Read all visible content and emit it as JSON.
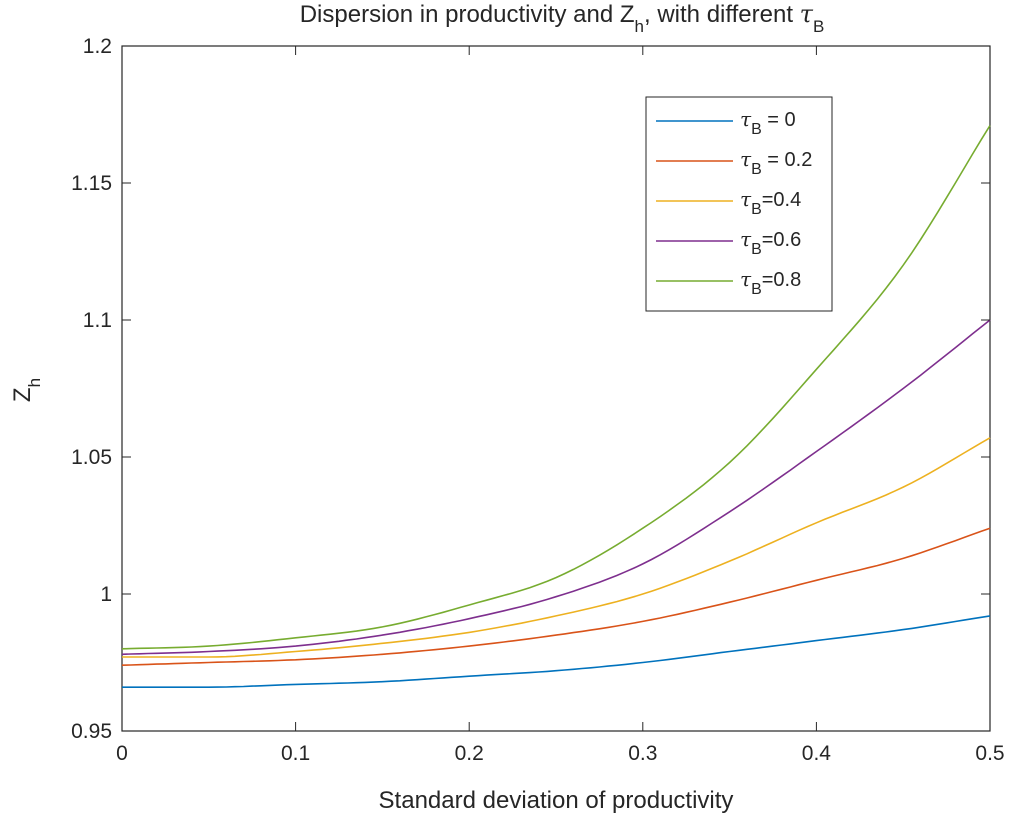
{
  "chart_data": {
    "type": "line",
    "title": {
      "main": "Dispersion in productivity and Z",
      "sub_h": "h",
      "mid": ", with different ",
      "tau": "τ",
      "sub_B": "B"
    },
    "xlabel": "Standard deviation of productivity",
    "ylabel": {
      "main": "Z",
      "sub": "h"
    },
    "xlim": [
      0,
      0.5
    ],
    "ylim": [
      0.95,
      1.2
    ],
    "xticks": [
      "0",
      "0.1",
      "0.2",
      "0.3",
      "0.4",
      "0.5"
    ],
    "yticks": [
      "0.95",
      "1",
      "1.05",
      "1.1",
      "1.15",
      "1.2"
    ],
    "grid": false,
    "legend_position": "top-right",
    "x": [
      0,
      0.05,
      0.1,
      0.15,
      0.2,
      0.25,
      0.3,
      0.35,
      0.4,
      0.45,
      0.5
    ],
    "series": [
      {
        "tau": "τ",
        "sub": "B",
        "label_tail": " = 0",
        "color": "#0072BD",
        "values": [
          0.966,
          0.966,
          0.967,
          0.968,
          0.97,
          0.972,
          0.975,
          0.979,
          0.983,
          0.987,
          0.992
        ]
      },
      {
        "tau": "τ",
        "sub": "B",
        "label_tail": " = 0.2",
        "color": "#D95319",
        "values": [
          0.974,
          0.975,
          0.976,
          0.978,
          0.981,
          0.985,
          0.99,
          0.997,
          1.005,
          1.013,
          1.024
        ]
      },
      {
        "tau": "τ",
        "sub": "B",
        "label_tail": "=0.4",
        "color": "#EDB120",
        "values": [
          0.977,
          0.977,
          0.979,
          0.982,
          0.986,
          0.992,
          1.0,
          1.012,
          1.026,
          1.039,
          1.057
        ]
      },
      {
        "tau": "τ",
        "sub": "B",
        "label_tail": "=0.6",
        "color": "#7E2F8E",
        "values": [
          0.978,
          0.979,
          0.981,
          0.985,
          0.991,
          0.999,
          1.011,
          1.03,
          1.052,
          1.075,
          1.1
        ]
      },
      {
        "tau": "τ",
        "sub": "B",
        "label_tail": "=0.8",
        "color": "#77AC30",
        "values": [
          0.98,
          0.981,
          0.984,
          0.988,
          0.996,
          1.006,
          1.024,
          1.048,
          1.082,
          1.12,
          1.171
        ]
      }
    ]
  }
}
